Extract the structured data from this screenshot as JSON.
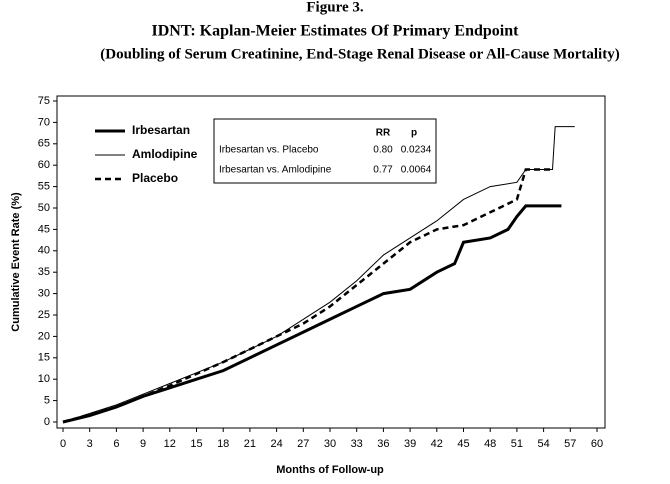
{
  "chart_data": {
    "type": "line",
    "figure_label": "Figure 3.",
    "title": "IDNT: Kaplan-Meier Estimates Of Primary Endpoint",
    "subtitle": "(Doubling of Serum Creatinine, End-Stage Renal Disease or All-Cause Mortality)",
    "x_label": "Months of Follow-up",
    "y_label": "Cumulative Event Rate (%)",
    "xlim": [
      0,
      60
    ],
    "xticks": [
      0,
      3,
      6,
      9,
      12,
      15,
      18,
      21,
      24,
      27,
      30,
      33,
      36,
      39,
      42,
      45,
      48,
      51,
      54,
      57,
      60
    ],
    "ylim": [
      0,
      75
    ],
    "yticks": [
      0,
      5,
      10,
      15,
      20,
      25,
      30,
      35,
      40,
      45,
      50,
      55,
      60,
      65,
      70,
      75
    ],
    "series": [
      {
        "name": "Irbesartan",
        "color": "#000000",
        "width": 3,
        "dashed": false,
        "x": [
          0,
          3,
          6,
          9,
          12,
          15,
          18,
          21,
          24,
          27,
          30,
          33,
          36,
          39,
          42,
          44,
          45,
          48,
          50,
          51,
          52,
          56
        ],
        "values": [
          0,
          1.5,
          3.5,
          6,
          8,
          10,
          12,
          15,
          18,
          21,
          24,
          27,
          30,
          31,
          35,
          37,
          42,
          43,
          45,
          48,
          50.5,
          50.5
        ]
      },
      {
        "name": "Amlodipine",
        "color": "#000000",
        "width": 1,
        "dashed": false,
        "x": [
          0,
          6,
          12,
          18,
          21,
          24,
          27,
          30,
          33,
          36,
          39,
          42,
          45,
          48,
          51,
          52,
          55,
          55.3,
          57.5
        ],
        "values": [
          0,
          4,
          9,
          14,
          17,
          20,
          24,
          28,
          33,
          39,
          43,
          47,
          52,
          55,
          56,
          59,
          59,
          69,
          69
        ]
      },
      {
        "name": "Placebo",
        "color": "#000000",
        "width": 2.5,
        "dashed": true,
        "x": [
          0,
          6,
          12,
          18,
          21,
          24,
          27,
          30,
          33,
          36,
          39,
          42,
          45,
          48,
          51,
          52,
          55
        ],
        "values": [
          0,
          3.5,
          8.5,
          14,
          17,
          20,
          23,
          27,
          32,
          37,
          42,
          45,
          46,
          49,
          52,
          59,
          59
        ]
      }
    ],
    "inset_table": {
      "header": [
        "RR",
        "p"
      ],
      "rows": [
        [
          "Irbesartan vs. Placebo",
          "0.80",
          "0.0234"
        ],
        [
          "Irbesartan vs. Amlodipine",
          "0.77",
          "0.0064"
        ]
      ]
    }
  }
}
